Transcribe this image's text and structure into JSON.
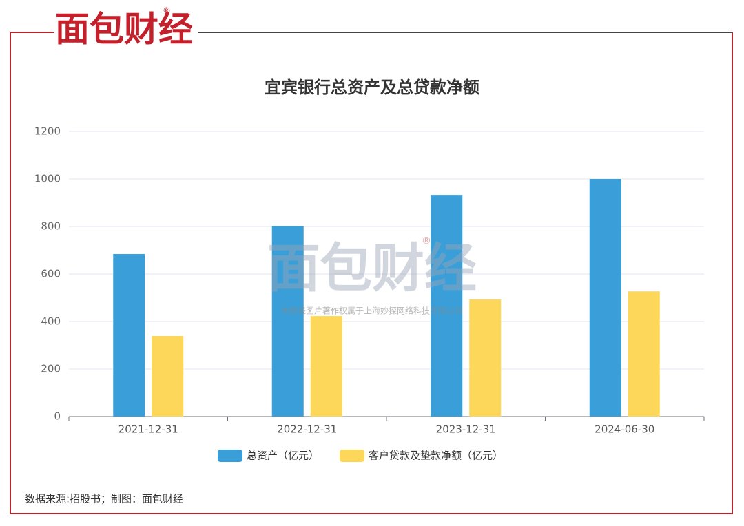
{
  "brand": {
    "logo": "面包财经",
    "mark": "®"
  },
  "watermark": {
    "logo": "面包财经",
    "mark": "®",
    "text": "本图表图片著作权属于上海妙探网络科技有限公司"
  },
  "footer": {
    "source": "数据来源:招股书；制图：面包财经"
  },
  "chart_data": {
    "type": "bar",
    "title": "宜宾银行总资产及总贷款净额",
    "categories": [
      "2021-12-31",
      "2022-12-31",
      "2023-12-31",
      "2024-06-30"
    ],
    "series": [
      {
        "name": "总资产（亿元）",
        "color": "#3a9fd8",
        "values": [
          684,
          803,
          933,
          1000
        ]
      },
      {
        "name": "客户贷款及垫款净额（亿元）",
        "color": "#fdd75a",
        "values": [
          339,
          423,
          493,
          527
        ]
      }
    ],
    "ylim": [
      0,
      1200
    ],
    "yticks": [
      0,
      200,
      400,
      600,
      800,
      1000,
      1200
    ],
    "grid": true,
    "legend": "bottom"
  }
}
